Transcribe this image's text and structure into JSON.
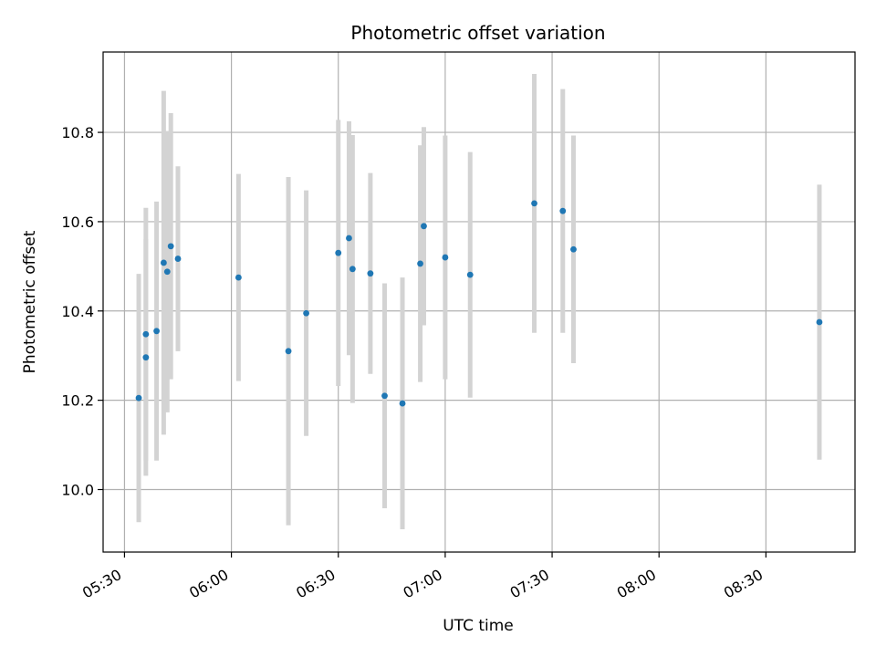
{
  "chart_data": {
    "type": "scatter",
    "title": "Photometric offset variation",
    "xlabel": "UTC time",
    "ylabel": "Photometric offset",
    "x_unit": "UTC HH:MM",
    "xlim": [
      "05:24",
      "08:55"
    ],
    "ylim": [
      9.86,
      10.98
    ],
    "x_ticks": [
      "05:30",
      "06:00",
      "06:30",
      "07:00",
      "07:30",
      "08:00",
      "08:30"
    ],
    "y_ticks": [
      "10.0",
      "10.2",
      "10.4",
      "10.6",
      "10.8"
    ],
    "grid": true,
    "legend": "none",
    "point_color": "#1f77b4",
    "errorbar_color": "#d3d3d3",
    "points": [
      {
        "x": "05:34",
        "y": 10.205,
        "err": 0.278
      },
      {
        "x": "05:36",
        "y": 10.296,
        "err": 0.265
      },
      {
        "x": "05:36",
        "y": 10.348,
        "err": 0.283
      },
      {
        "x": "05:39",
        "y": 10.355,
        "err": 0.29
      },
      {
        "x": "05:41",
        "y": 10.508,
        "err": 0.385
      },
      {
        "x": "05:42",
        "y": 10.488,
        "err": 0.315
      },
      {
        "x": "05:43",
        "y": 10.545,
        "err": 0.298
      },
      {
        "x": "05:45",
        "y": 10.517,
        "err": 0.207
      },
      {
        "x": "06:02",
        "y": 10.475,
        "err": 0.232
      },
      {
        "x": "06:16",
        "y": 10.31,
        "err": 0.39
      },
      {
        "x": "06:21",
        "y": 10.395,
        "err": 0.275
      },
      {
        "x": "06:30",
        "y": 10.53,
        "err": 0.298
      },
      {
        "x": "06:33",
        "y": 10.563,
        "err": 0.262
      },
      {
        "x": "06:34",
        "y": 10.494,
        "err": 0.3
      },
      {
        "x": "06:39",
        "y": 10.484,
        "err": 0.225
      },
      {
        "x": "06:43",
        "y": 10.21,
        "err": 0.252
      },
      {
        "x": "06:48",
        "y": 10.193,
        "err": 0.282
      },
      {
        "x": "06:53",
        "y": 10.506,
        "err": 0.265
      },
      {
        "x": "06:54",
        "y": 10.59,
        "err": 0.222
      },
      {
        "x": "07:00",
        "y": 10.52,
        "err": 0.273
      },
      {
        "x": "07:07",
        "y": 10.481,
        "err": 0.275
      },
      {
        "x": "07:25",
        "y": 10.641,
        "err": 0.29
      },
      {
        "x": "07:33",
        "y": 10.624,
        "err": 0.273
      },
      {
        "x": "07:36",
        "y": 10.538,
        "err": 0.255
      },
      {
        "x": "08:45",
        "y": 10.375,
        "err": 0.308
      }
    ]
  }
}
